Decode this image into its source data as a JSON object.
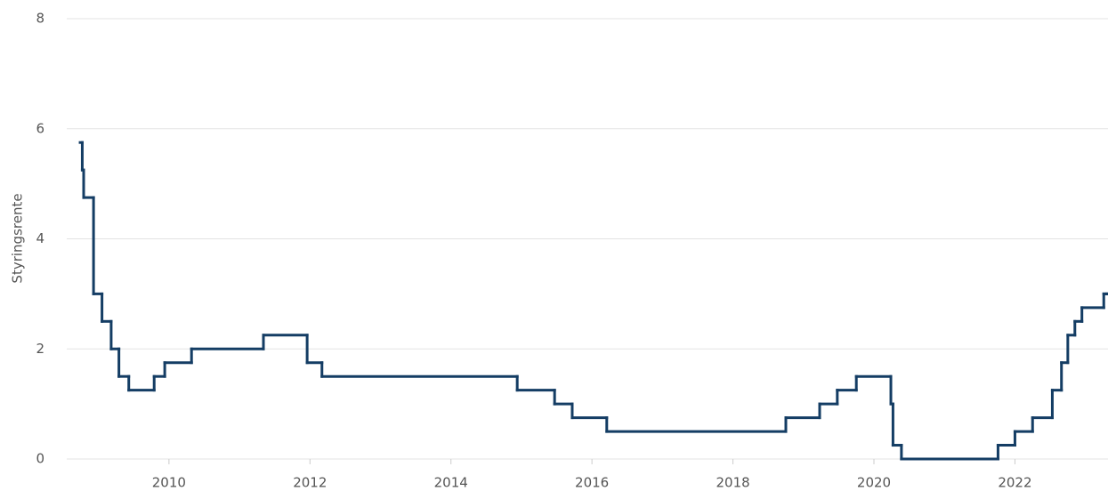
{
  "chart_data": {
    "type": "line",
    "step": "after",
    "y_label": "Styringsrente",
    "color": "#143d64",
    "grid": true,
    "x": [
      2008.74,
      2008.77,
      2008.79,
      2008.93,
      2009.05,
      2009.18,
      2009.29,
      2009.43,
      2009.79,
      2009.94,
      2010.32,
      2011.34,
      2011.96,
      2012.17,
      2014.94,
      2015.47,
      2015.72,
      2016.21,
      2018.75,
      2019.23,
      2019.48,
      2019.75,
      2020.24,
      2020.27,
      2020.39,
      2021.76,
      2022.0,
      2022.25,
      2022.53,
      2022.66,
      2022.75,
      2022.85,
      2022.95,
      2023.26,
      2023.3
    ],
    "values": [
      5.75,
      5.25,
      4.75,
      3.0,
      2.5,
      2.0,
      1.5,
      1.25,
      1.5,
      1.75,
      2.0,
      2.25,
      1.75,
      1.5,
      1.25,
      1.0,
      0.75,
      0.5,
      0.75,
      1.0,
      1.25,
      1.5,
      1.0,
      0.25,
      0,
      0.25,
      0.5,
      0.75,
      1.25,
      1.75,
      2.25,
      2.5,
      2.75,
      3.0,
      3.0
    ],
    "xlim": [
      2008.55,
      2023.32
    ],
    "xticks": [
      2010,
      2012,
      2014,
      2016,
      2018,
      2020,
      2022
    ],
    "ylim": [
      0,
      8
    ],
    "yticks": [
      0,
      2,
      4,
      6,
      8
    ]
  }
}
